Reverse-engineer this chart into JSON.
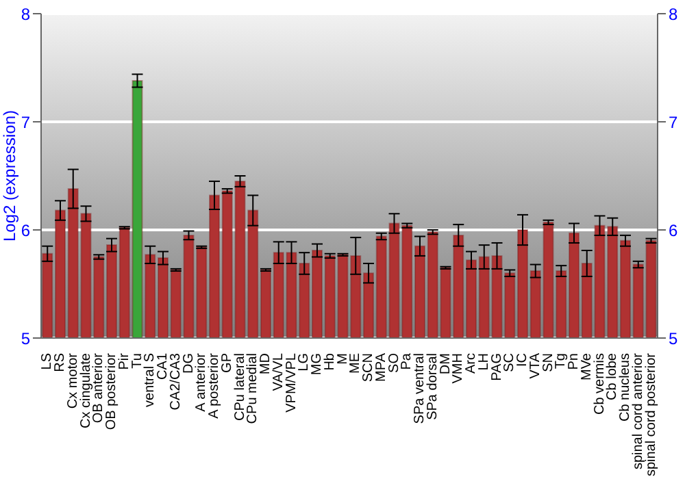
{
  "chart_data": {
    "type": "bar",
    "ylabel": "Log2 (expression)",
    "categories": [
      "LS",
      "RS",
      "Cx motor",
      "Cx cingulate",
      "OB anterior",
      "OB posterior",
      "Pir",
      "Tu",
      "ventral S",
      "CA1",
      "CA2/CA3",
      "DG",
      "A anterior",
      "A posterior",
      "GP",
      "CPu lateral",
      "CPu medial",
      "MD",
      "VA/VL",
      "VPM/VPL",
      "LG",
      "MG",
      "Hb",
      "M",
      "ME",
      "SCN",
      "MPA",
      "SO",
      "Pa",
      "SPa ventral",
      "SPa dorsal",
      "DM",
      "VMH",
      "Arc",
      "LH",
      "PAG",
      "SC",
      "IC",
      "VTA",
      "SN",
      "Tg",
      "Pn",
      "MVe",
      "Cb vermis",
      "Cb lobe",
      "Cb nucleus",
      "spinal cord anterior",
      "spinal cord posterior"
    ],
    "values": [
      5.78,
      6.18,
      6.38,
      6.15,
      5.75,
      5.86,
      6.02,
      7.38,
      5.77,
      5.74,
      5.63,
      5.95,
      5.84,
      6.32,
      6.36,
      6.45,
      6.18,
      5.63,
      5.79,
      5.79,
      5.69,
      5.81,
      5.76,
      5.77,
      5.76,
      5.6,
      5.94,
      6.06,
      6.04,
      5.85,
      5.98,
      5.65,
      5.95,
      5.72,
      5.75,
      5.76,
      5.6,
      6.0,
      5.62,
      6.07,
      5.62,
      5.97,
      5.69,
      6.04,
      6.03,
      5.9,
      5.68,
      5.9
    ],
    "errors": [
      0.07,
      0.09,
      0.18,
      0.07,
      0.02,
      0.06,
      0.01,
      0.06,
      0.08,
      0.06,
      0.01,
      0.04,
      0.01,
      0.13,
      0.02,
      0.05,
      0.14,
      0.01,
      0.1,
      0.1,
      0.1,
      0.06,
      0.02,
      0.01,
      0.17,
      0.09,
      0.03,
      0.09,
      0.02,
      0.09,
      0.02,
      0.01,
      0.1,
      0.08,
      0.11,
      0.12,
      0.03,
      0.14,
      0.06,
      0.02,
      0.05,
      0.09,
      0.12,
      0.09,
      0.08,
      0.05,
      0.03,
      0.02
    ],
    "colors": [
      "#b03232",
      "#b03232",
      "#b03232",
      "#b03232",
      "#b03232",
      "#b03232",
      "#b03232",
      "#3aa63a",
      "#b03232",
      "#b03232",
      "#b03232",
      "#b03232",
      "#b03232",
      "#b03232",
      "#b03232",
      "#b03232",
      "#b03232",
      "#b03232",
      "#b03232",
      "#b03232",
      "#b03232",
      "#b03232",
      "#b03232",
      "#b03232",
      "#b03232",
      "#b03232",
      "#b03232",
      "#b03232",
      "#b03232",
      "#b03232",
      "#b03232",
      "#b03232",
      "#b03232",
      "#b03232",
      "#b03232",
      "#b03232",
      "#b03232",
      "#b03232",
      "#b03232",
      "#b03232",
      "#b03232",
      "#b03232",
      "#b03232",
      "#b03232",
      "#b03232",
      "#b03232",
      "#b03232",
      "#b03232"
    ],
    "ylim": [
      5,
      8
    ],
    "yticks": [
      5,
      6,
      7,
      8
    ],
    "y2lim": [
      5,
      8
    ],
    "y2ticks": [
      5,
      6,
      7,
      8
    ],
    "grid": "y",
    "legend": false
  }
}
